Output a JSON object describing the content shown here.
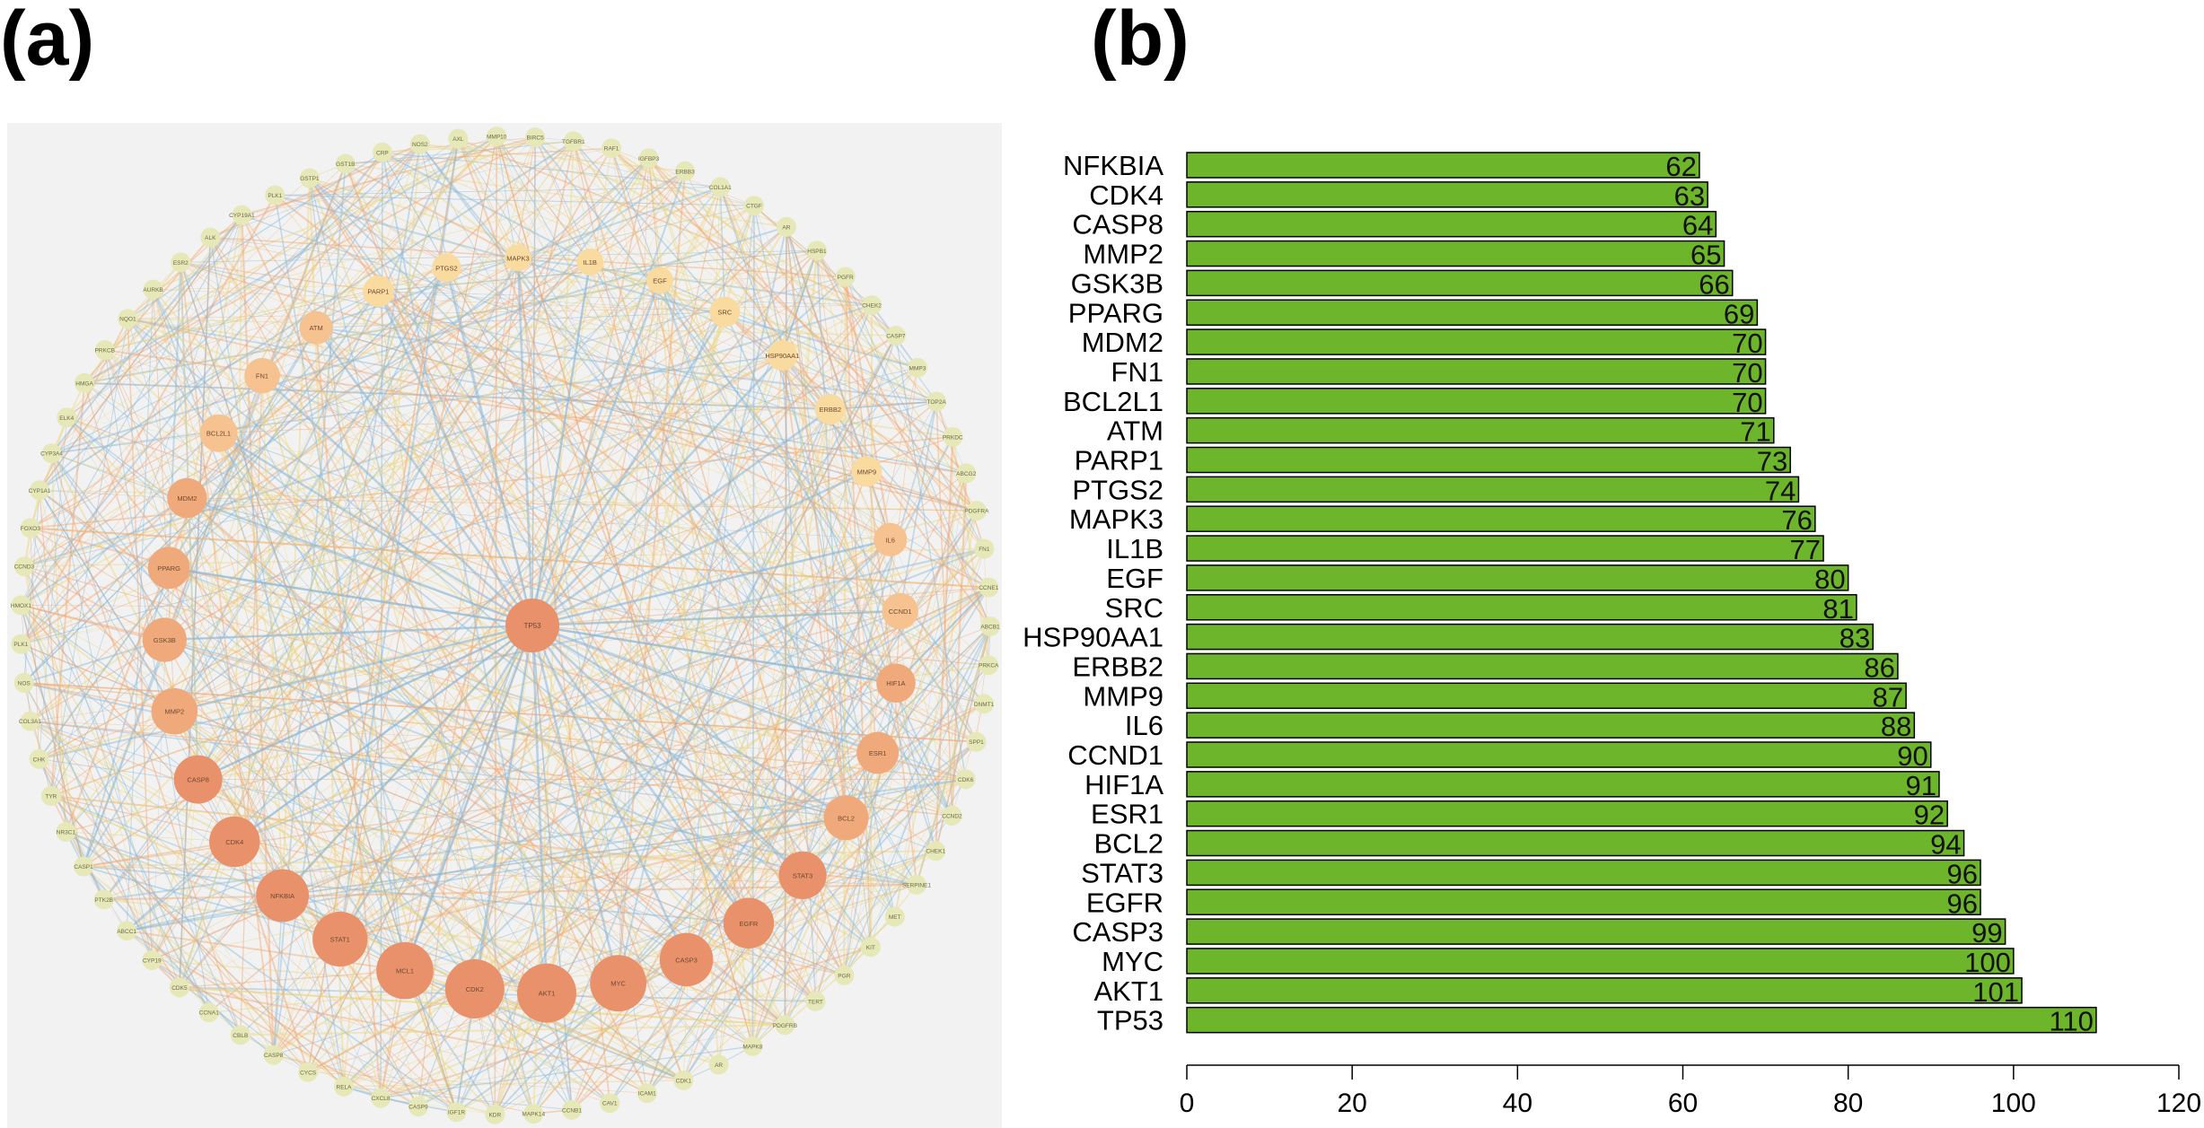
{
  "panels": {
    "a_label": "(a)",
    "b_label": "(b)"
  },
  "network": {
    "center_node": "TP53",
    "inner_nodes": [
      "SRC",
      "HSP90AA1",
      "ERBB2",
      "MMP9",
      "IL6",
      "CCND1",
      "HIF1A",
      "ESR1",
      "BCL2",
      "STAT3",
      "EGFR",
      "CASP3",
      "MYC",
      "AKT1",
      "CDK2",
      "MCL1",
      "STAT1",
      "NFKBIA",
      "CDK4",
      "CASP8",
      "MMP2",
      "GSK3B",
      "PPARG",
      "MDM2",
      "BCL2L1",
      "FN1",
      "ATM",
      "PARP1",
      "PTGS2",
      "MAPK3",
      "IL1B",
      "EGF"
    ],
    "outer_nodes": [
      "IGFBP3",
      "ERBB3",
      "COL1A1",
      "CTGF",
      "AR",
      "HSPB1",
      "PGFR",
      "CHEK2",
      "CASP7",
      "MMP3",
      "TOP2A",
      "PRKDC",
      "ABCG2",
      "PDGFRA",
      "FN1",
      "CCNE1",
      "ABCB1",
      "PRKCA",
      "DNMT1",
      "SPP1",
      "CDK6",
      "CCND2",
      "CHEK1",
      "SERPINE1",
      "MET",
      "KIT",
      "PGR",
      "TERT",
      "PDGFRB",
      "MAPK8",
      "AR",
      "CDK1",
      "ICAM1",
      "CAV1",
      "CCNB1",
      "MAPK14",
      "KDR",
      "IGF1R",
      "CASP9",
      "CXCL8",
      "RELA",
      "CYCS",
      "CASP8",
      "CBLB",
      "CCNA1",
      "CDK5",
      "CYP19",
      "ABCC1",
      "PTK2B",
      "CASP1",
      "NR3C1",
      "TYR",
      "CHK",
      "COL3A1",
      "NOS",
      "PLK1",
      "HMOX1",
      "CCND3",
      "FOXO3",
      "CYP1A1",
      "CYP3A4",
      "ELK4",
      "HMGA",
      "PRKCB",
      "NQO1",
      "AURKB",
      "ESR2",
      "ALK",
      "CYP19A1",
      "PLK1",
      "GSTP1",
      "GST1B",
      "CRP",
      "NOS2",
      "AXL",
      "MMP10",
      "BIRC5",
      "TGFBR1",
      "RAF1"
    ],
    "colors": {
      "hub_strong": "#e8916a",
      "hub_mid": "#f0a97a",
      "node_inner": "#f6c28f",
      "node_light": "#f9dba0",
      "node_outer": "#e6e8b8",
      "edge_blue": "#8ab7d6",
      "edge_orange": "#f2a36f",
      "edge_yellow": "#ead47e",
      "background": "#f2f2f2"
    }
  },
  "chart_data": {
    "type": "bar",
    "orientation": "horizontal",
    "categories": [
      "NFKBIA",
      "CDK4",
      "CASP8",
      "MMP2",
      "GSK3B",
      "PPARG",
      "MDM2",
      "FN1",
      "BCL2L1",
      "ATM",
      "PARP1",
      "PTGS2",
      "MAPK3",
      "IL1B",
      "EGF",
      "SRC",
      "HSP90AA1",
      "ERBB2",
      "MMP9",
      "IL6",
      "CCND1",
      "HIF1A",
      "ESR1",
      "BCL2",
      "STAT3",
      "EGFR",
      "CASP3",
      "MYC",
      "AKT1",
      "TP53"
    ],
    "values": [
      62,
      63,
      64,
      65,
      66,
      69,
      70,
      70,
      70,
      71,
      73,
      74,
      76,
      77,
      80,
      81,
      83,
      86,
      87,
      88,
      90,
      91,
      92,
      94,
      96,
      96,
      99,
      100,
      101,
      110
    ],
    "value_labels": [
      "62",
      "63",
      "64",
      "65",
      "66",
      "69",
      "70",
      "70",
      "70",
      "71",
      "73",
      "74",
      "76",
      "77",
      "80",
      "81",
      "83",
      "86",
      "87",
      "88",
      "90",
      "91",
      "92",
      "94",
      "96",
      "96",
      "99",
      "100",
      "101",
      "110"
    ],
    "xlim": [
      0,
      120
    ],
    "xticks": [
      "0",
      "20",
      "40",
      "60",
      "80",
      "100",
      "120"
    ],
    "title": "",
    "xlabel": "",
    "ylabel": "",
    "bar_color": "#6db52a",
    "bar_edge": "#000000",
    "grid": false
  }
}
